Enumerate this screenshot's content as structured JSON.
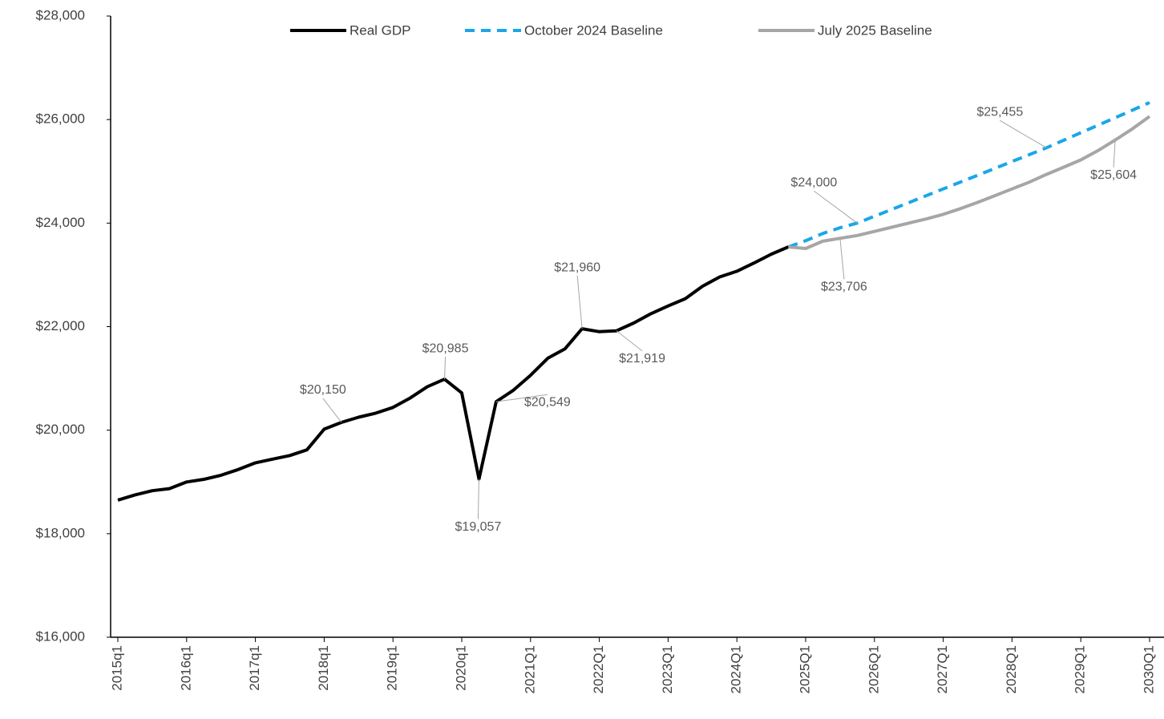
{
  "chart_data": {
    "type": "line",
    "categories": [
      "2015q1",
      null,
      null,
      null,
      "2016q1",
      null,
      null,
      null,
      "2017q1",
      null,
      null,
      null,
      "2018q1",
      null,
      null,
      null,
      "2019q1",
      null,
      null,
      null,
      "2020q1",
      null,
      null,
      null,
      "2021Q1",
      null,
      null,
      null,
      "2022Q1",
      null,
      null,
      null,
      "2023Q1",
      null,
      null,
      null,
      "2024Q1",
      null,
      null,
      null,
      "2025Q1",
      null,
      null,
      null,
      "2026Q1",
      null,
      null,
      null,
      "2027Q1",
      null,
      null,
      null,
      "2028Q1",
      null,
      null,
      null,
      "2029Q1",
      null,
      null,
      null,
      "2030Q1"
    ],
    "series": [
      {
        "name": "Real GDP",
        "color": "#000000",
        "values": [
          18650,
          18750,
          18830,
          18870,
          19000,
          19050,
          19130,
          19240,
          19370,
          19440,
          19510,
          19620,
          20020,
          20150,
          20250,
          20330,
          20440,
          20620,
          20840,
          20985,
          20720,
          19057,
          20549,
          20770,
          21060,
          21390,
          21570,
          21960,
          21903,
          21919,
          22070,
          22250,
          22400,
          22540,
          22780,
          22960,
          23070,
          23230,
          23400,
          23540,
          null,
          null,
          null,
          null,
          null,
          null,
          null,
          null,
          null,
          null,
          null,
          null,
          null,
          null,
          null,
          null,
          null,
          null,
          null,
          null,
          null
        ],
        "value_labels": [
          null,
          null,
          null,
          null,
          null,
          null,
          null,
          null,
          null,
          null,
          null,
          null,
          null,
          "$20,150",
          null,
          null,
          null,
          null,
          null,
          "$20,985",
          null,
          "$19,057",
          "$20,549",
          null,
          null,
          null,
          null,
          "$21,960",
          null,
          "$21,919",
          null,
          null,
          null,
          null,
          null,
          null,
          null,
          null,
          null,
          null,
          null,
          null,
          null,
          null,
          null,
          null,
          null,
          null,
          null,
          null,
          null,
          null,
          null,
          null,
          null,
          null,
          null,
          null,
          null,
          null,
          null
        ]
      },
      {
        "name": "October 2024 Baseline",
        "color": "#1aa7e8",
        "dashed": true,
        "values": [
          null,
          null,
          null,
          null,
          null,
          null,
          null,
          null,
          null,
          null,
          null,
          null,
          null,
          null,
          null,
          null,
          null,
          null,
          null,
          null,
          null,
          null,
          null,
          null,
          null,
          null,
          null,
          null,
          null,
          null,
          null,
          null,
          null,
          null,
          null,
          null,
          null,
          null,
          null,
          23540,
          23660,
          23800,
          23910,
          24000,
          24132,
          24264,
          24396,
          24528,
          24660,
          24792,
          24924,
          25056,
          25190,
          25322,
          25455,
          25600,
          25745,
          25890,
          26035,
          26180,
          26330
        ],
        "value_labels": [
          null,
          null,
          null,
          null,
          null,
          null,
          null,
          null,
          null,
          null,
          null,
          null,
          null,
          null,
          null,
          null,
          null,
          null,
          null,
          null,
          null,
          null,
          null,
          null,
          null,
          null,
          null,
          null,
          null,
          null,
          null,
          null,
          null,
          null,
          null,
          null,
          null,
          null,
          null,
          null,
          null,
          null,
          null,
          "$24,000",
          null,
          null,
          null,
          null,
          null,
          null,
          null,
          null,
          null,
          null,
          "$25,455",
          null,
          null,
          null,
          null,
          null,
          null
        ]
      },
      {
        "name": "July 2025 Baseline",
        "color": "#a6a6a6",
        "values": [
          null,
          null,
          null,
          null,
          null,
          null,
          null,
          null,
          null,
          null,
          null,
          null,
          null,
          null,
          null,
          null,
          null,
          null,
          null,
          null,
          null,
          null,
          null,
          null,
          null,
          null,
          null,
          null,
          null,
          null,
          null,
          null,
          null,
          null,
          null,
          null,
          null,
          null,
          null,
          23540,
          23510,
          23650,
          23706,
          23760,
          23840,
          23920,
          24000,
          24080,
          24170,
          24280,
          24400,
          24530,
          24660,
          24790,
          24940,
          25080,
          25220,
          25400,
          25604,
          25820,
          26060
        ],
        "value_labels": [
          null,
          null,
          null,
          null,
          null,
          null,
          null,
          null,
          null,
          null,
          null,
          null,
          null,
          null,
          null,
          null,
          null,
          null,
          null,
          null,
          null,
          null,
          null,
          null,
          null,
          null,
          null,
          null,
          null,
          null,
          null,
          null,
          null,
          null,
          null,
          null,
          null,
          null,
          null,
          null,
          null,
          null,
          "$23,706",
          null,
          null,
          null,
          null,
          null,
          null,
          null,
          null,
          null,
          null,
          null,
          null,
          null,
          null,
          null,
          "$25,604",
          null,
          null
        ]
      }
    ],
    "ylim": [
      16000,
      28000
    ],
    "yticks": [
      {
        "value": 16000,
        "label": "$16,000"
      },
      {
        "value": 18000,
        "label": "$18,000"
      },
      {
        "value": 20000,
        "label": "$20,000"
      },
      {
        "value": 22000,
        "label": "$22,000"
      },
      {
        "value": 24000,
        "label": "$24,000"
      },
      {
        "value": 26000,
        "label": "$26,000"
      },
      {
        "value": 28000,
        "label": "$28,000"
      }
    ],
    "grid": false,
    "legend": "top"
  }
}
